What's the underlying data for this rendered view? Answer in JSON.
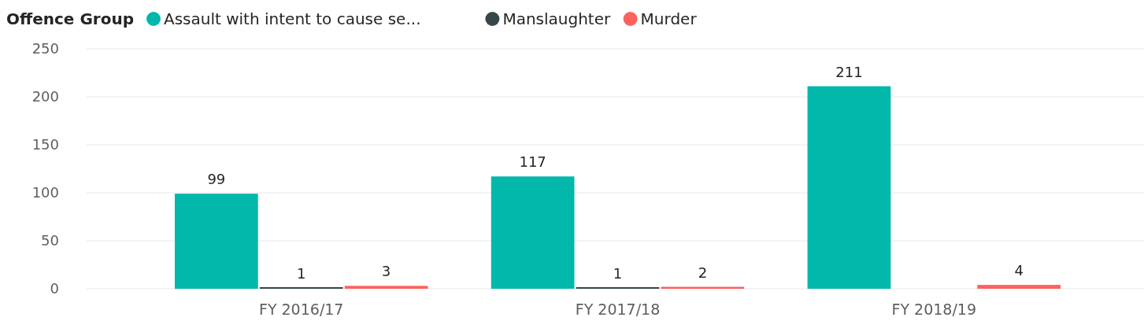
{
  "chart_data": {
    "type": "bar",
    "legend_title": "Offence Group",
    "legend": "top left",
    "categories": [
      "FY 2016/17",
      "FY 2017/18",
      "FY 2018/19"
    ],
    "series": [
      {
        "name": "Assault with intent to cause se...",
        "color": "#01b8aa",
        "values": [
          99,
          117,
          211
        ]
      },
      {
        "name": "Manslaughter",
        "color": "#374649",
        "values": [
          1,
          1,
          null
        ]
      },
      {
        "name": "Murder",
        "color": "#fd625e",
        "values": [
          3,
          2,
          4
        ]
      }
    ],
    "ylim": [
      0,
      250
    ],
    "yticks": [
      0,
      50,
      100,
      150,
      200,
      250
    ],
    "grid": "y",
    "data_labels": true
  }
}
